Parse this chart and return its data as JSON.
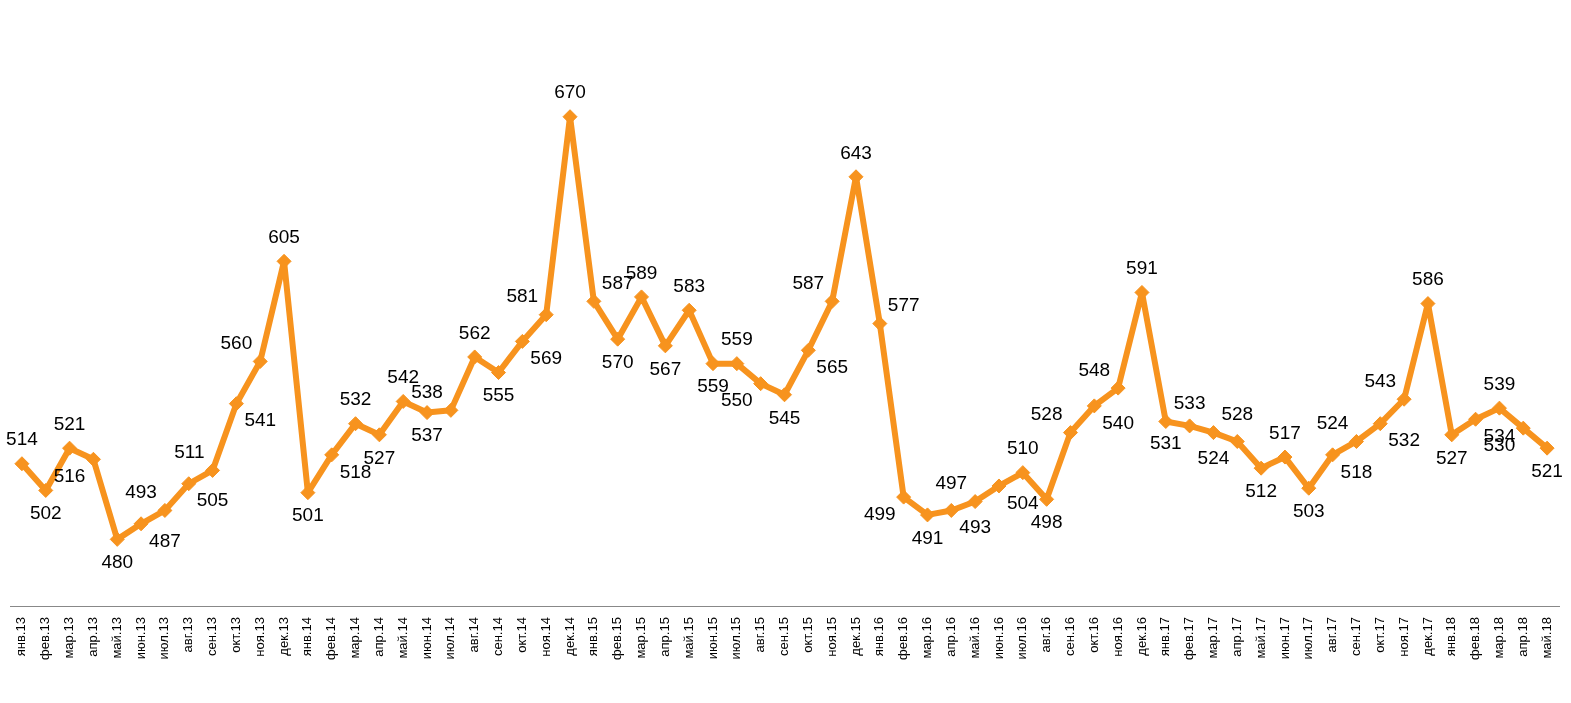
{
  "chart_data": {
    "type": "line",
    "categories": [
      "янв.13",
      "фев.13",
      "мар.13",
      "апр.13",
      "май.13",
      "июн.13",
      "июл.13",
      "авг.13",
      "сен.13",
      "окт.13",
      "ноя.13",
      "дек.13",
      "янв.14",
      "фев.14",
      "мар.14",
      "апр.14",
      "май.14",
      "июн.14",
      "июл.14",
      "авг.14",
      "сен.14",
      "окт.14",
      "ноя.14",
      "дек.14",
      "янв.15",
      "фев.15",
      "мар.15",
      "апр.15",
      "май.15",
      "июн.15",
      "июл.15",
      "авг.15",
      "сен.15",
      "окт.15",
      "ноя.15",
      "дек.15",
      "янв.16",
      "фев.16",
      "мар.16",
      "апр.16",
      "май.16",
      "июн.16",
      "июл.16",
      "авг.16",
      "сен.16",
      "окт.16",
      "ноя.16",
      "дек.16",
      "янв.17",
      "фев.17",
      "мар.17",
      "апр.17",
      "май.17",
      "июн.17",
      "июл.17",
      "авг.17",
      "сен.17",
      "окт.17",
      "ноя.17",
      "дек.17",
      "янв.18",
      "фев.18",
      "мар.18",
      "апр.18",
      "май.18"
    ],
    "series": [
      {
        "color": "#f7931e",
        "values": [
          514,
          502,
          521,
          516,
          480,
          487,
          493,
          505,
          511,
          541,
          560,
          605,
          501,
          518,
          532,
          527,
          542,
          537,
          538,
          562,
          555,
          569,
          581,
          670,
          587,
          570,
          589,
          567,
          583,
          559,
          559,
          550,
          545,
          565,
          587,
          643,
          577,
          499,
          491,
          493,
          497,
          504,
          510,
          498,
          528,
          540,
          548,
          591,
          533,
          531,
          528,
          524,
          512,
          517,
          503,
          518,
          524,
          532,
          543,
          586,
          527,
          534,
          539,
          530,
          521
        ]
      }
    ],
    "data_labels": true,
    "marker": "diamond",
    "line_style": "solid",
    "tick_labels": "x",
    "legend": false
  }
}
